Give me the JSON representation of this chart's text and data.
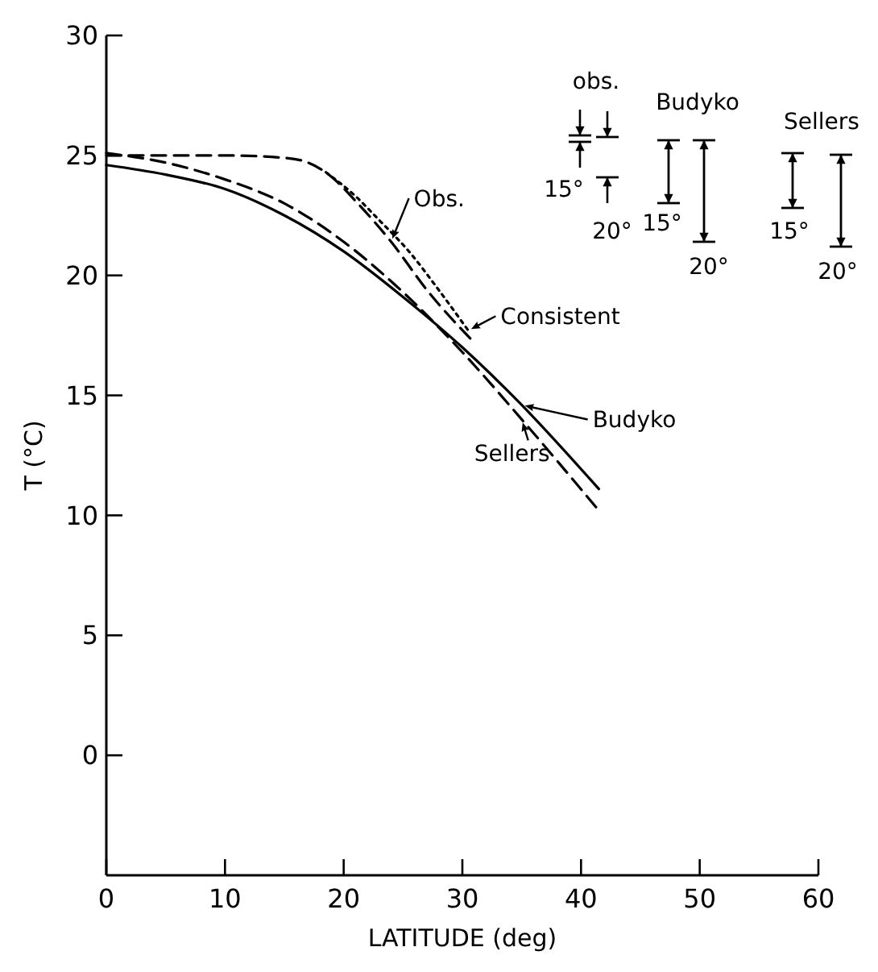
{
  "chart_data": {
    "type": "line",
    "xlabel": "LATITUDE (deg)",
    "ylabel": "T (°C)",
    "xlim": [
      0,
      60
    ],
    "xticks": [
      0,
      10,
      20,
      30,
      40,
      50,
      60
    ],
    "ylim": [
      -5,
      30
    ],
    "yticks": [
      0,
      5,
      10,
      15,
      20,
      25,
      30
    ],
    "marker": "none",
    "legend": "right",
    "series": [
      {
        "name": "Obs.",
        "x": [
          0,
          5,
          10,
          15,
          17,
          19,
          21,
          24,
          27,
          31
        ],
        "values": [
          25.0,
          25.0,
          25.0,
          24.9,
          24.7,
          24.1,
          23.1,
          21.4,
          19.4,
          17.2
        ],
        "color": "#000000",
        "line_style": "dashed"
      },
      {
        "name": "Consistent",
        "x": [
          18.5,
          21,
          23,
          25.5,
          28,
          30.5
        ],
        "values": [
          24.3,
          23.3,
          22.3,
          21.0,
          19.4,
          17.7
        ],
        "color": "#000000",
        "line_style": "dotted"
      },
      {
        "name": "Budyko",
        "x": [
          0,
          5,
          10,
          15,
          20,
          25,
          30,
          35,
          41.5
        ],
        "values": [
          24.6,
          24.2,
          23.6,
          22.5,
          21.0,
          19.1,
          17.0,
          14.6,
          11.1
        ],
        "color": "#000000",
        "line_style": "solid"
      },
      {
        "name": "Sellers",
        "x": [
          0,
          5,
          10,
          15,
          20,
          25,
          30,
          35,
          41.5
        ],
        "values": [
          25.1,
          24.7,
          24.0,
          23.0,
          21.4,
          19.3,
          16.8,
          14.0,
          10.2
        ],
        "color": "#000000",
        "line_style": "dashed"
      }
    ],
    "annotations": [
      "obs.",
      "15°",
      "20°",
      "Budyko",
      "15°",
      "20°",
      "Sellers",
      "15°",
      "20°"
    ]
  }
}
